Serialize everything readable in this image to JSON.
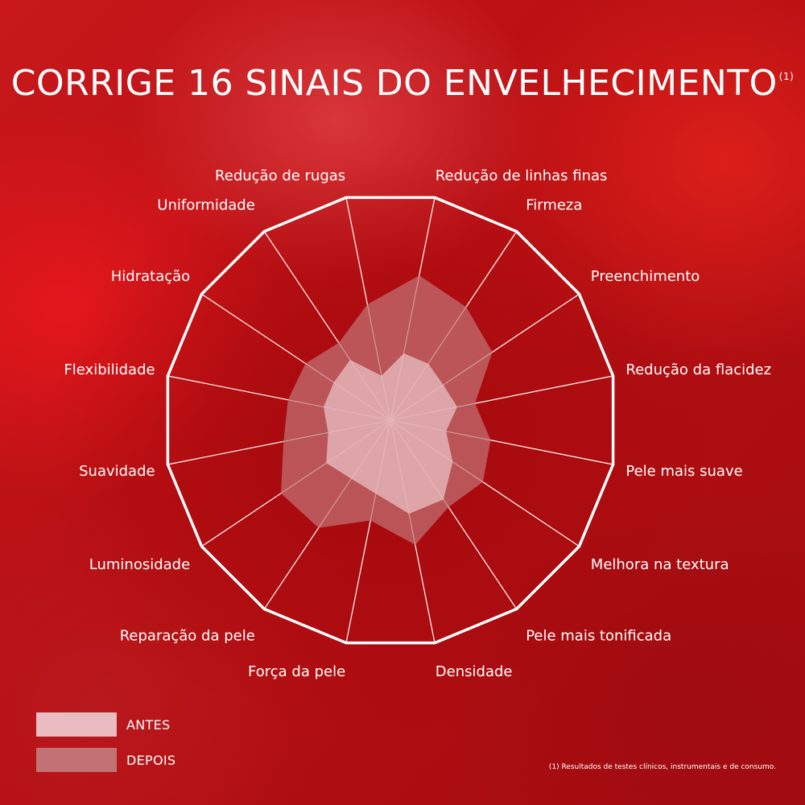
{
  "title": "CORRIGE 16 SINAIS DO ENVELHECIMENTO",
  "title_superscript": "(1)",
  "footnote": "(1) Resultados de testes clínicos, instrumentais e de consumo.",
  "legend": [
    {
      "label": "ANTES",
      "color": "#e8bcc0"
    },
    {
      "label": "DEPOIS",
      "color": "#c27275"
    }
  ],
  "chart_data": {
    "type": "radar",
    "categories": [
      "Redução de rugas",
      "Redução de linhas finas",
      "Firmeza",
      "Preenchimento",
      "Redução da flacidez",
      "Pele mais suave",
      "Melhora na textura",
      "Pele mais tonificada",
      "Densidade",
      "Força da pele",
      "Reparação da pele",
      "Luminosidade",
      "Suavidade",
      "Flexibilidade",
      "Hidratação",
      "Uniformidade"
    ],
    "series": [
      {
        "name": "DEPOIS",
        "values": [
          0.52,
          0.65,
          0.6,
          0.54,
          0.38,
          0.45,
          0.49,
          0.46,
          0.56,
          0.45,
          0.57,
          0.58,
          0.48,
          0.46,
          0.45,
          0.41
        ]
      },
      {
        "name": "ANTES",
        "values": [
          0.2,
          0.3,
          0.3,
          0.28,
          0.3,
          0.25,
          0.33,
          0.42,
          0.42,
          0.33,
          0.31,
          0.34,
          0.28,
          0.3,
          0.3,
          0.32
        ]
      }
    ],
    "range": [
      0,
      1
    ],
    "grid": "polygon-outline-with-spokes"
  }
}
